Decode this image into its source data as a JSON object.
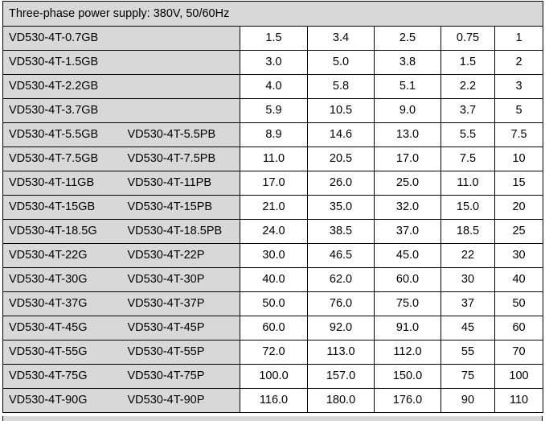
{
  "table": {
    "header": "Three-phase power supply: 380V, 50/60Hz",
    "rows": [
      {
        "model": "VD530-4T-0.7GB",
        "alt_model": "",
        "v1": "1.5",
        "v2": "3.4",
        "v3": "2.5",
        "v4": "0.75",
        "v5": "1"
      },
      {
        "model": "VD530-4T-1.5GB",
        "alt_model": "",
        "v1": "3.0",
        "v2": "5.0",
        "v3": "3.8",
        "v4": "1.5",
        "v5": "2"
      },
      {
        "model": "VD530-4T-2.2GB",
        "alt_model": "",
        "v1": "4.0",
        "v2": "5.8",
        "v3": "5.1",
        "v4": "2.2",
        "v5": "3"
      },
      {
        "model": "VD530-4T-3.7GB",
        "alt_model": "",
        "v1": "5.9",
        "v2": "10.5",
        "v3": "9.0",
        "v4": "3.7",
        "v5": "5"
      },
      {
        "model": "VD530-4T-5.5GB",
        "alt_model": "VD530-4T-5.5PB",
        "v1": "8.9",
        "v2": "14.6",
        "v3": "13.0",
        "v4": "5.5",
        "v5": "7.5"
      },
      {
        "model": "VD530-4T-7.5GB",
        "alt_model": "VD530-4T-7.5PB",
        "v1": "11.0",
        "v2": "20.5",
        "v3": "17.0",
        "v4": "7.5",
        "v5": "10"
      },
      {
        "model": "VD530-4T-11GB",
        "alt_model": "VD530-4T-11PB",
        "v1": "17.0",
        "v2": "26.0",
        "v3": "25.0",
        "v4": "11.0",
        "v5": "15"
      },
      {
        "model": "VD530-4T-15GB",
        "alt_model": "VD530-4T-15PB",
        "v1": "21.0",
        "v2": "35.0",
        "v3": "32.0",
        "v4": "15.0",
        "v5": "20"
      },
      {
        "model": "VD530-4T-18.5G",
        "alt_model": "VD530-4T-18.5PB",
        "v1": "24.0",
        "v2": "38.5",
        "v3": "37.0",
        "v4": "18.5",
        "v5": "25"
      },
      {
        "model": "VD530-4T-22G",
        "alt_model": "VD530-4T-22P",
        "v1": "30.0",
        "v2": "46.5",
        "v3": "45.0",
        "v4": "22",
        "v5": "30"
      },
      {
        "model": "VD530-4T-30G",
        "alt_model": "VD530-4T-30P",
        "v1": "40.0",
        "v2": "62.0",
        "v3": "60.0",
        "v4": "30",
        "v5": "40"
      },
      {
        "model": "VD530-4T-37G",
        "alt_model": "VD530-4T-37P",
        "v1": "50.0",
        "v2": "76.0",
        "v3": "75.0",
        "v4": "37",
        "v5": "50"
      },
      {
        "model": "VD530-4T-45G",
        "alt_model": "VD530-4T-45P",
        "v1": "60.0",
        "v2": "92.0",
        "v3": "91.0",
        "v4": "45",
        "v5": "60"
      },
      {
        "model": "VD530-4T-55G",
        "alt_model": "VD530-4T-55P",
        "v1": "72.0",
        "v2": "113.0",
        "v3": "112.0",
        "v4": "55",
        "v5": "70"
      },
      {
        "model": "VD530-4T-75G",
        "alt_model": "VD530-4T-75P",
        "v1": "100.0",
        "v2": "157.0",
        "v3": "150.0",
        "v4": "75",
        "v5": "100"
      },
      {
        "model": "VD530-4T-90G",
        "alt_model": "VD530-4T-90P",
        "v1": "116.0",
        "v2": "180.0",
        "v3": "176.0",
        "v4": "90",
        "v5": "110"
      }
    ]
  },
  "colors": {
    "shaded_cell": "#d8d8d8",
    "value_cell": "#ffffff",
    "border": "#000000"
  }
}
